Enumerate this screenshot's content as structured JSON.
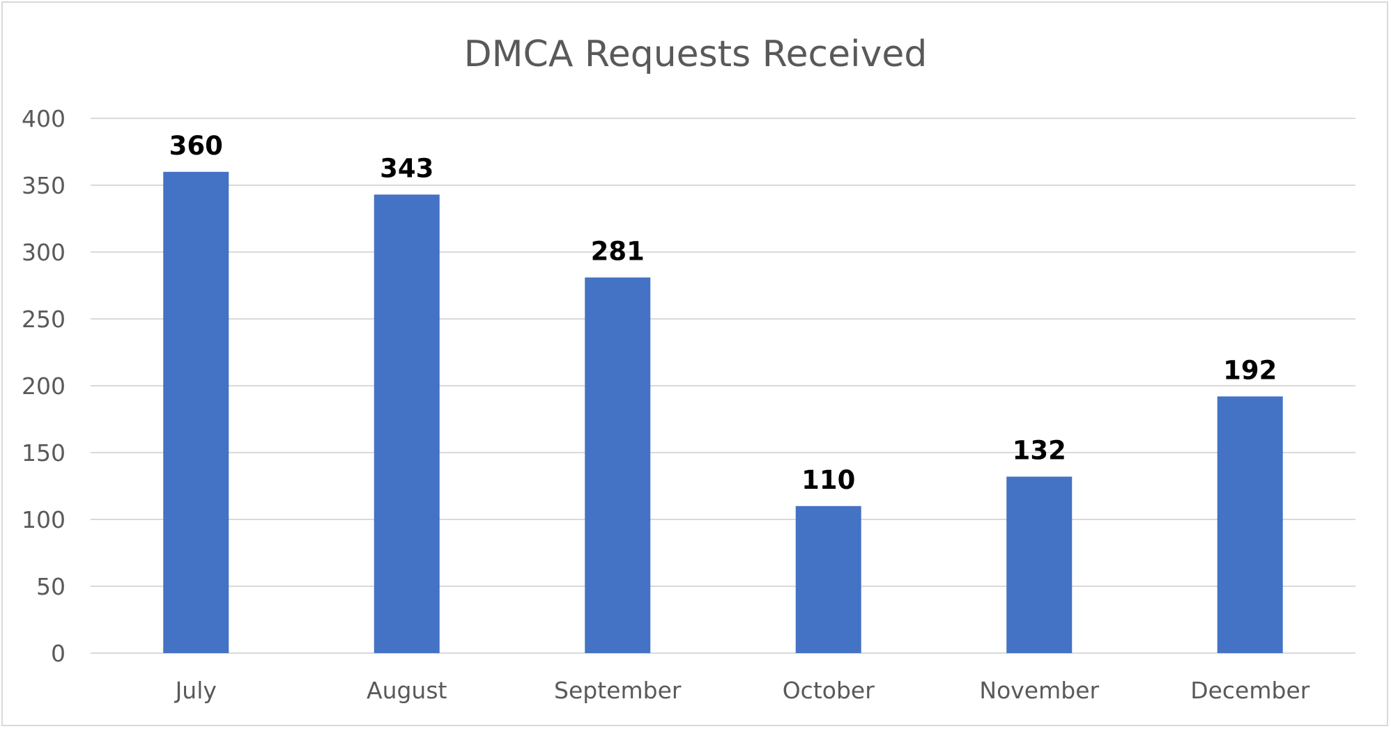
{
  "chart_data": {
    "type": "bar",
    "title": "DMCA Requests Received",
    "categories": [
      "July",
      "August",
      "September",
      "October",
      "November",
      "December"
    ],
    "values": [
      360,
      343,
      281,
      110,
      132,
      192
    ],
    "ylim": [
      0,
      400
    ],
    "yticks": [
      0,
      50,
      100,
      150,
      200,
      250,
      300,
      350,
      400
    ],
    "grid": true,
    "legend": "none",
    "data_labels": true,
    "colors": {
      "bar": "#4472c4",
      "grid": "#d9d9d9",
      "text": "#595959",
      "label": "#000000"
    }
  }
}
